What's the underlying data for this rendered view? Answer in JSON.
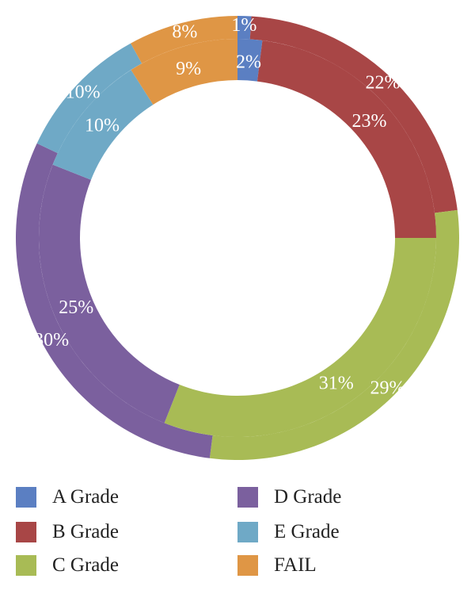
{
  "chart_data": {
    "type": "pie",
    "variant": "double-ring donut",
    "categories": [
      "A Grade",
      "B Grade",
      "C Grade",
      "D Grade",
      "E Grade",
      "FAIL"
    ],
    "colors": [
      "#5b7fc2",
      "#a84646",
      "#a8bb55",
      "#7b609e",
      "#6fa9c6",
      "#df9645"
    ],
    "series": [
      {
        "ring": "outer",
        "values": [
          1,
          22,
          29,
          30,
          10,
          8
        ],
        "labels": [
          "1%",
          "22%",
          "29%",
          "30%",
          "10%",
          "8%"
        ]
      },
      {
        "ring": "inner",
        "values": [
          2,
          23,
          31,
          25,
          10,
          9
        ],
        "labels": [
          "2%",
          "23%",
          "31%",
          "25%",
          "10%",
          "9%"
        ]
      }
    ],
    "legend": {
      "position": "bottom",
      "columns": 2,
      "items": [
        {
          "label": "A Grade",
          "color": "#5b7fc2"
        },
        {
          "label": "B Grade",
          "color": "#a84646"
        },
        {
          "label": "C Grade",
          "color": "#a8bb55"
        },
        {
          "label": "D Grade",
          "color": "#7b609e"
        },
        {
          "label": "E Grade",
          "color": "#6fa9c6"
        },
        {
          "label": "FAIL",
          "color": "#df9645"
        }
      ]
    }
  }
}
